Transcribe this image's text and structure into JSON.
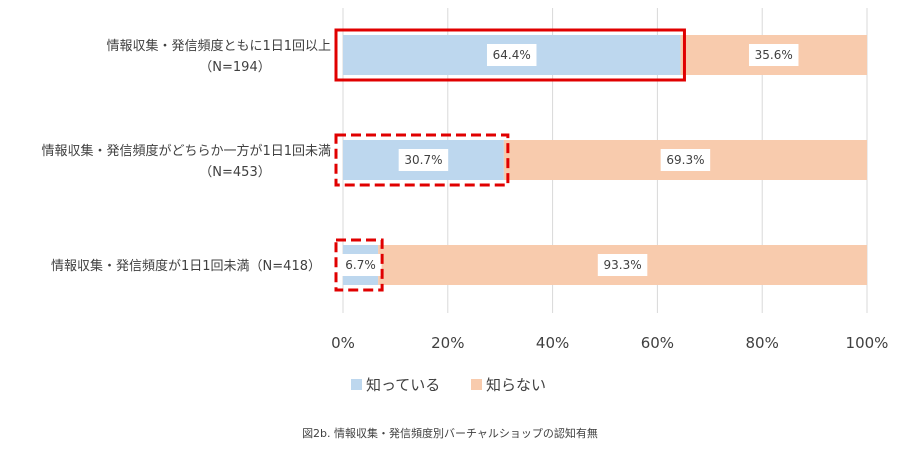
{
  "chart_data": {
    "type": "bar",
    "orientation": "horizontal",
    "stacked": true,
    "categories": [
      {
        "line1": "情報収集・発信頻度ともに1日1回以上",
        "line2": "（N=194）"
      },
      {
        "line1": "情報収集・発信頻度がどちらか一方が1日1回未満",
        "line2": "（N=453）"
      },
      {
        "line1": "情報収集・発信頻度が1日1回未満（N=418）",
        "line2": ""
      }
    ],
    "series": [
      {
        "name": "知っている",
        "color": "#bdd7ee",
        "values": [
          64.4,
          30.7,
          6.7
        ],
        "labels": [
          "64.4%",
          "30.7%",
          "6.7%"
        ]
      },
      {
        "name": "知らない",
        "color": "#f8cbad",
        "values": [
          35.6,
          69.3,
          93.3
        ],
        "labels": [
          "35.6%",
          "69.3%",
          "93.3%"
        ]
      }
    ],
    "xlim": [
      0,
      100
    ],
    "x_ticks": [
      "0%",
      "20%",
      "40%",
      "60%",
      "80%",
      "100%"
    ],
    "grid": true,
    "legend_position": "bottom",
    "highlights": [
      {
        "category_index": 0,
        "style": "solid",
        "color": "#e00000"
      },
      {
        "category_index": 1,
        "style": "dashed",
        "color": "#e00000"
      },
      {
        "category_index": 2,
        "style": "dashed",
        "color": "#e00000"
      }
    ]
  },
  "caption": "図2b. 情報収集・発信頻度別バーチャルショップの認知有無"
}
